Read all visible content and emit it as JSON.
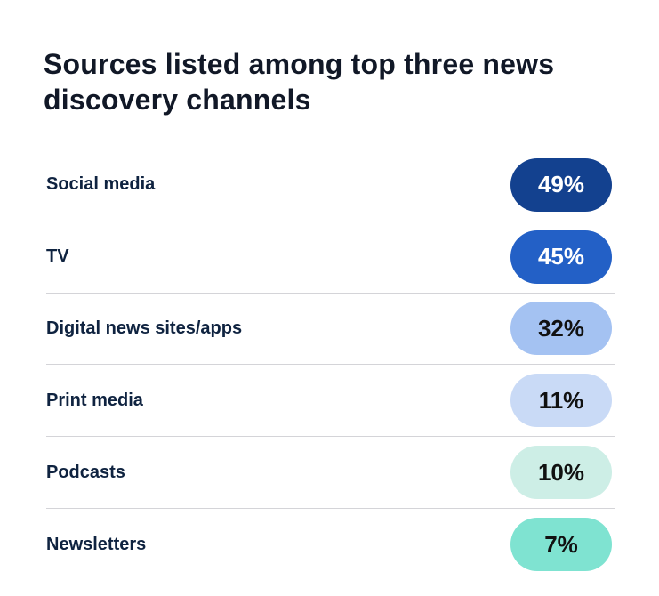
{
  "chart_data": {
    "type": "table",
    "title": "Sources listed among top three news discovery channels",
    "categories": [
      "Social media",
      "TV",
      "Digital news sites/apps",
      "Print media",
      "Podcasts",
      "Newsletters"
    ],
    "values": [
      49,
      45,
      32,
      11,
      10,
      7
    ],
    "labels": [
      "49%",
      "45%",
      "32%",
      "11%",
      "10%",
      "7%"
    ],
    "colors": [
      "#13418f",
      "#2360c6",
      "#a4c2f2",
      "#c9daf6",
      "#cdeee6",
      "#7fe3d1"
    ],
    "text_colors": [
      "#ffffff",
      "#ffffff",
      "#111111",
      "#111111",
      "#111111",
      "#111111"
    ]
  }
}
